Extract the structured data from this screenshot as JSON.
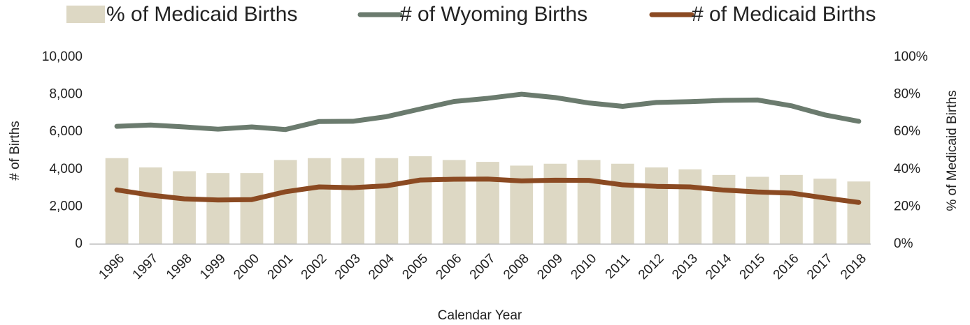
{
  "chart_data": {
    "type": "bar",
    "categories": [
      "1996",
      "1997",
      "1998",
      "1999",
      "2000",
      "2001",
      "2002",
      "2003",
      "2004",
      "2005",
      "2006",
      "2007",
      "2008",
      "2009",
      "2010",
      "2011",
      "2012",
      "2013",
      "2014",
      "2015",
      "2016",
      "2017",
      "2018"
    ],
    "series": [
      {
        "name": "% of Medicaid Births",
        "type": "bar",
        "axis": "y2",
        "color": "#ddd8c4",
        "values": [
          46,
          41,
          39,
          38,
          38,
          45,
          46,
          46,
          46,
          47,
          45,
          44,
          42,
          43,
          45,
          43,
          41,
          40,
          37,
          36,
          37,
          35,
          33.5
        ]
      },
      {
        "name": "# of Wyoming Births",
        "type": "line",
        "color": "#6b7b6e",
        "values": [
          6300,
          6370,
          6270,
          6150,
          6270,
          6130,
          6560,
          6570,
          6820,
          7230,
          7630,
          7800,
          8020,
          7840,
          7550,
          7370,
          7580,
          7620,
          7690,
          7710,
          7400,
          6910,
          6570
        ]
      },
      {
        "name": "# of Medicaid Births",
        "type": "line",
        "color": "#8b4a22",
        "values": [
          2900,
          2620,
          2420,
          2360,
          2380,
          2800,
          3060,
          3020,
          3120,
          3430,
          3470,
          3480,
          3380,
          3420,
          3410,
          3170,
          3090,
          3060,
          2890,
          2790,
          2730,
          2470,
          2230
        ]
      }
    ],
    "ylim": [
      0,
      10000
    ],
    "yticks": [
      0,
      {
        "value": 2000,
        "label": "2,000"
      },
      {
        "value": 4000,
        "label": "4,000"
      },
      {
        "value": 6000,
        "label": "6,000"
      },
      {
        "value": 8000,
        "label": "8,000"
      },
      {
        "value": 10000,
        "label": "10,000"
      }
    ],
    "y2lim": [
      0,
      100
    ],
    "y2ticks": [
      {
        "value": 0,
        "label": "0%"
      },
      {
        "value": 20,
        "label": "20%"
      },
      {
        "value": 40,
        "label": "40%"
      },
      {
        "value": 60,
        "label": "60%"
      },
      {
        "value": 80,
        "label": "80%"
      },
      {
        "value": 100,
        "label": "100%"
      }
    ],
    "ylabel": "# of Births",
    "y2label": "% of Medicaid Births",
    "xlabel": "Calendar Year",
    "legend": "top",
    "grid": false
  }
}
